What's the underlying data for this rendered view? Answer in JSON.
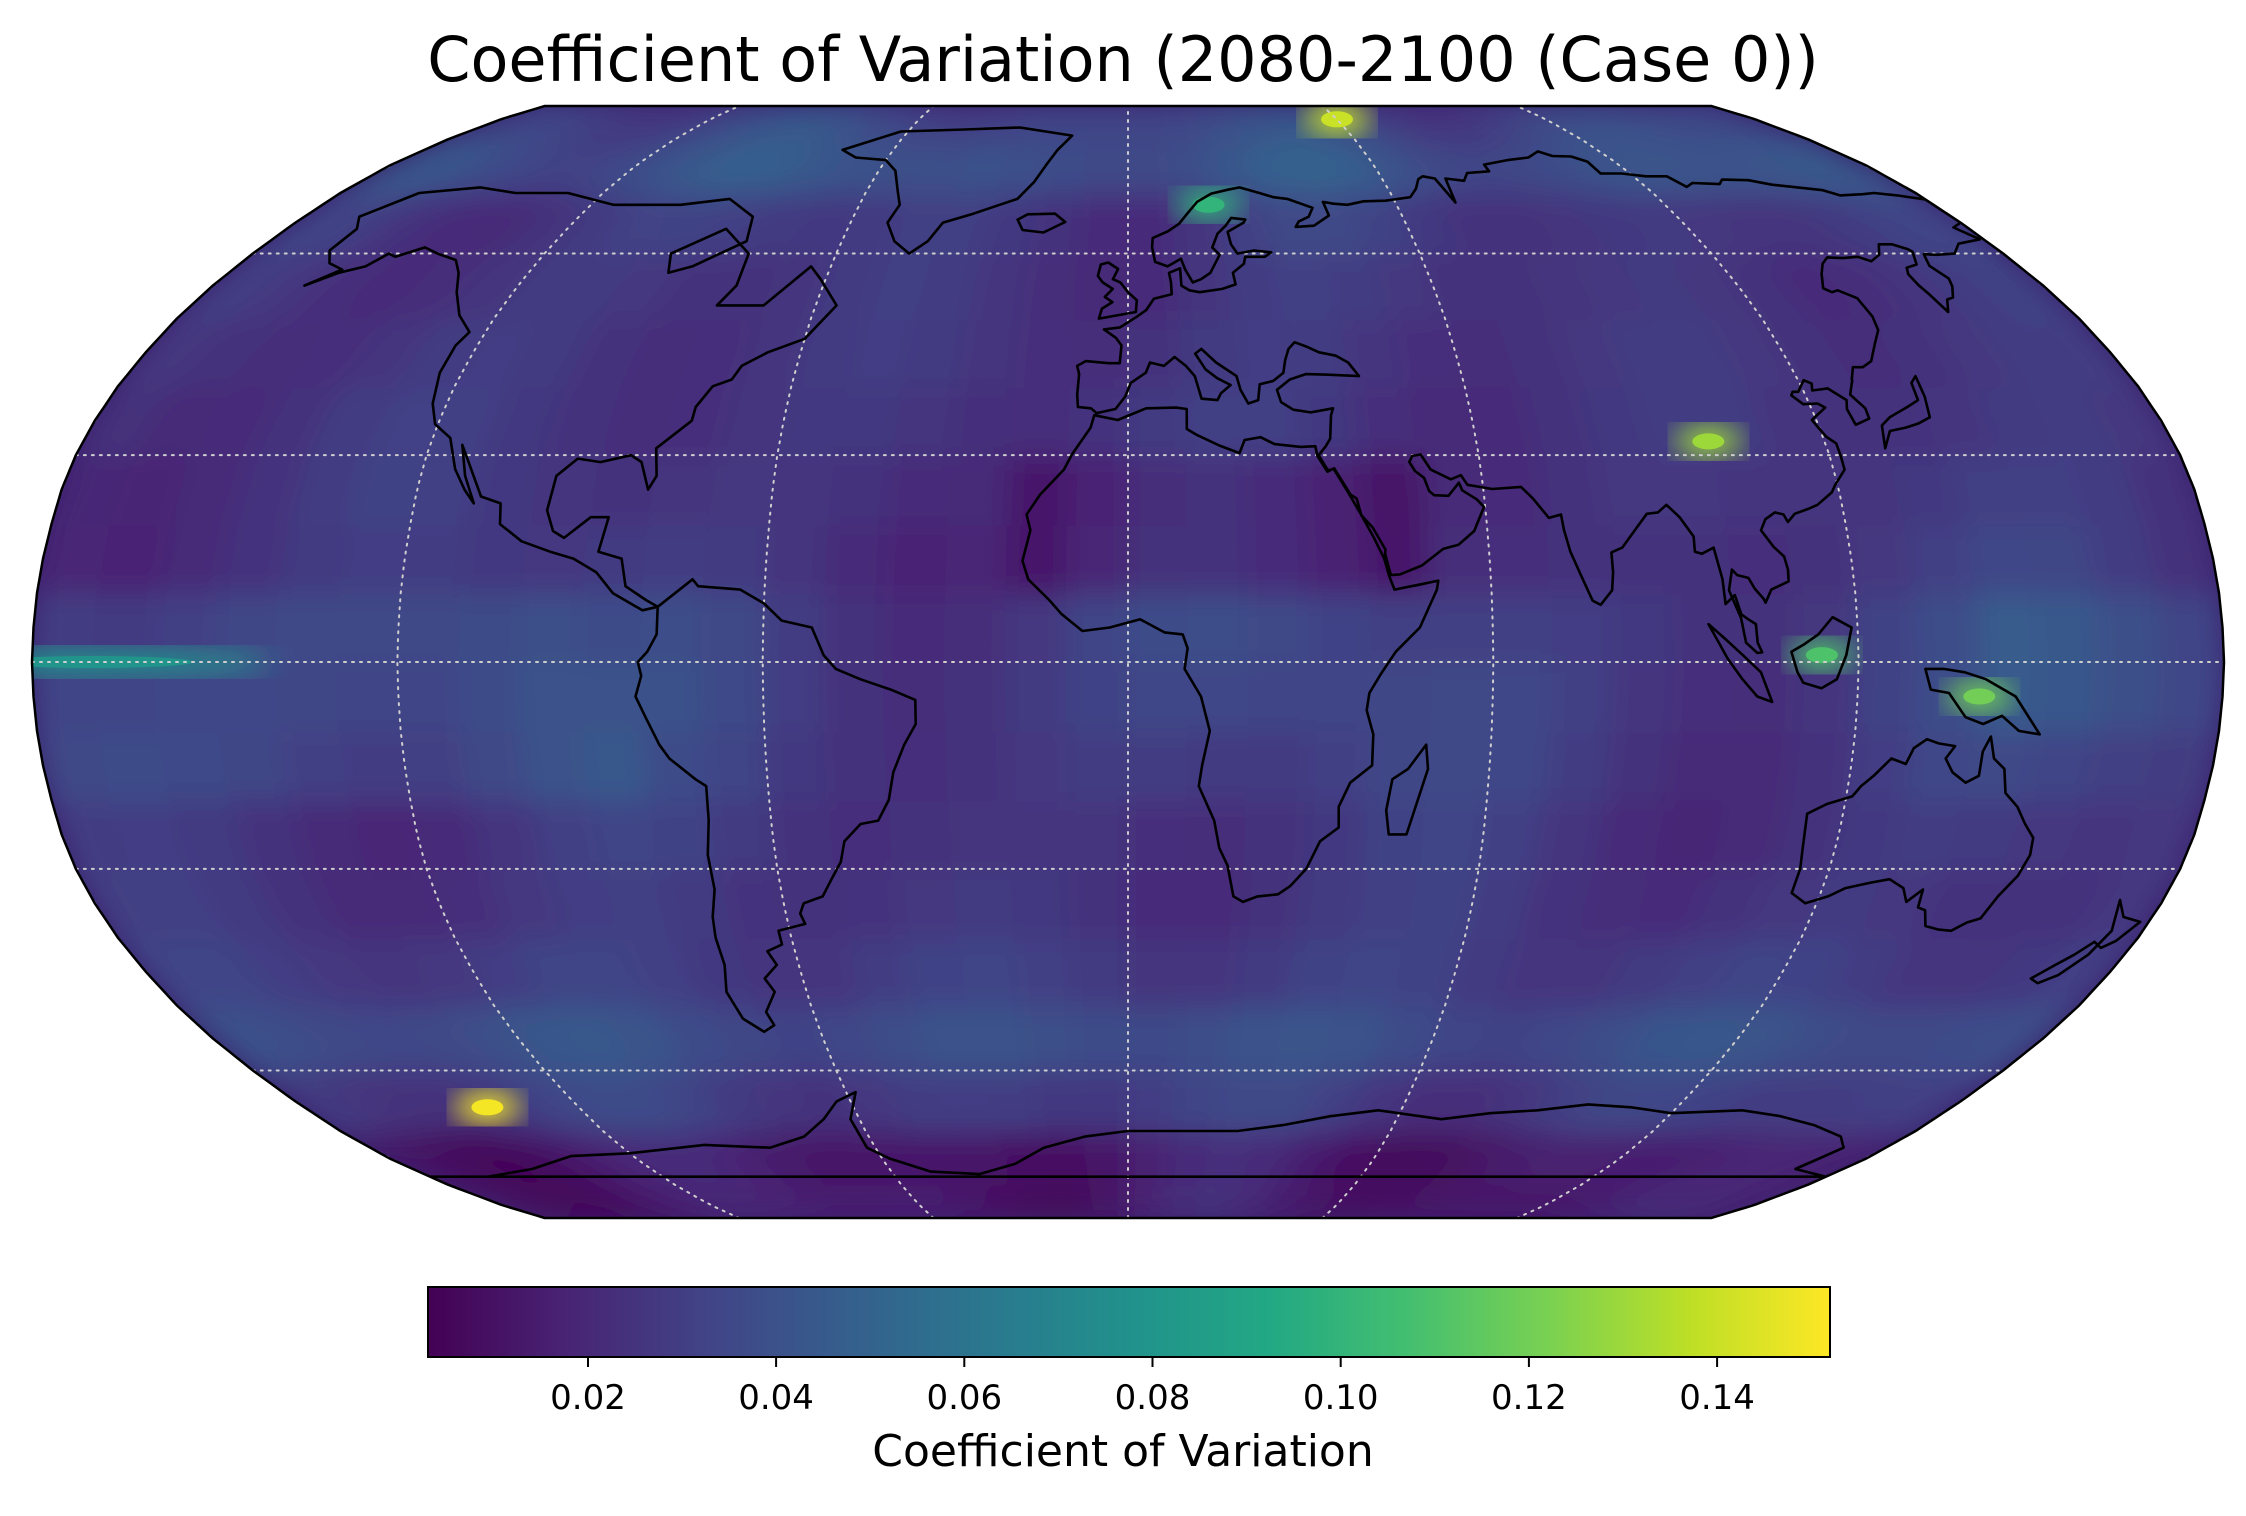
{
  "title": "Coefficient of Variation (2080-2100 (Case 0))",
  "projection": "Robinson",
  "colormap": "viridis",
  "colormap_stops": [
    "#440154",
    "#482475",
    "#414487",
    "#355f8d",
    "#2a788e",
    "#21918c",
    "#22a884",
    "#44bf70",
    "#7ad151",
    "#bddf26",
    "#fde725"
  ],
  "map_background": "#3b1f6d",
  "coastline_color": "#000000",
  "gridline_color": "#cfcfcf",
  "gridlines": {
    "longitudes": [
      -180,
      -120,
      -60,
      0,
      60,
      120,
      180
    ],
    "latitudes": [
      -60,
      -30,
      0,
      30,
      60
    ],
    "style": "dotted"
  },
  "chart_data": {
    "type": "heatmap",
    "title": "Coefficient of Variation (2080-2100 (Case 0))",
    "value_range": [
      0.003,
      0.152
    ],
    "colorbar": {
      "label": "Coefficient of Variation",
      "ticks": [
        0.02,
        0.04,
        0.06,
        0.08,
        0.1,
        0.12,
        0.14
      ],
      "tick_labels": [
        "0.02",
        "0.04",
        "0.06",
        "0.08",
        "0.10",
        "0.12",
        "0.14"
      ],
      "orientation": "horizontal",
      "location": "bottom"
    },
    "hotspots": [
      {
        "region": "Southern Ocean (Ross Sea sector)",
        "lon": -140,
        "lat": -66,
        "value": 0.15
      },
      {
        "region": "Arctic Ocean north of Siberia",
        "lon": 60,
        "lat": 85,
        "value": 0.14
      },
      {
        "region": "Tibetan Plateau",
        "lon": 100,
        "lat": 32,
        "value": 0.13
      },
      {
        "region": "New Guinea",
        "lon": 140,
        "lat": -5,
        "value": 0.12
      },
      {
        "region": "Borneo",
        "lon": 114,
        "lat": 1,
        "value": 0.11
      },
      {
        "region": "Equatorial Pacific band",
        "lon": -170,
        "lat": 0,
        "value": 0.08
      },
      {
        "region": "Northern Scandinavia",
        "lon": 18,
        "lat": 68,
        "value": 0.1
      }
    ]
  }
}
